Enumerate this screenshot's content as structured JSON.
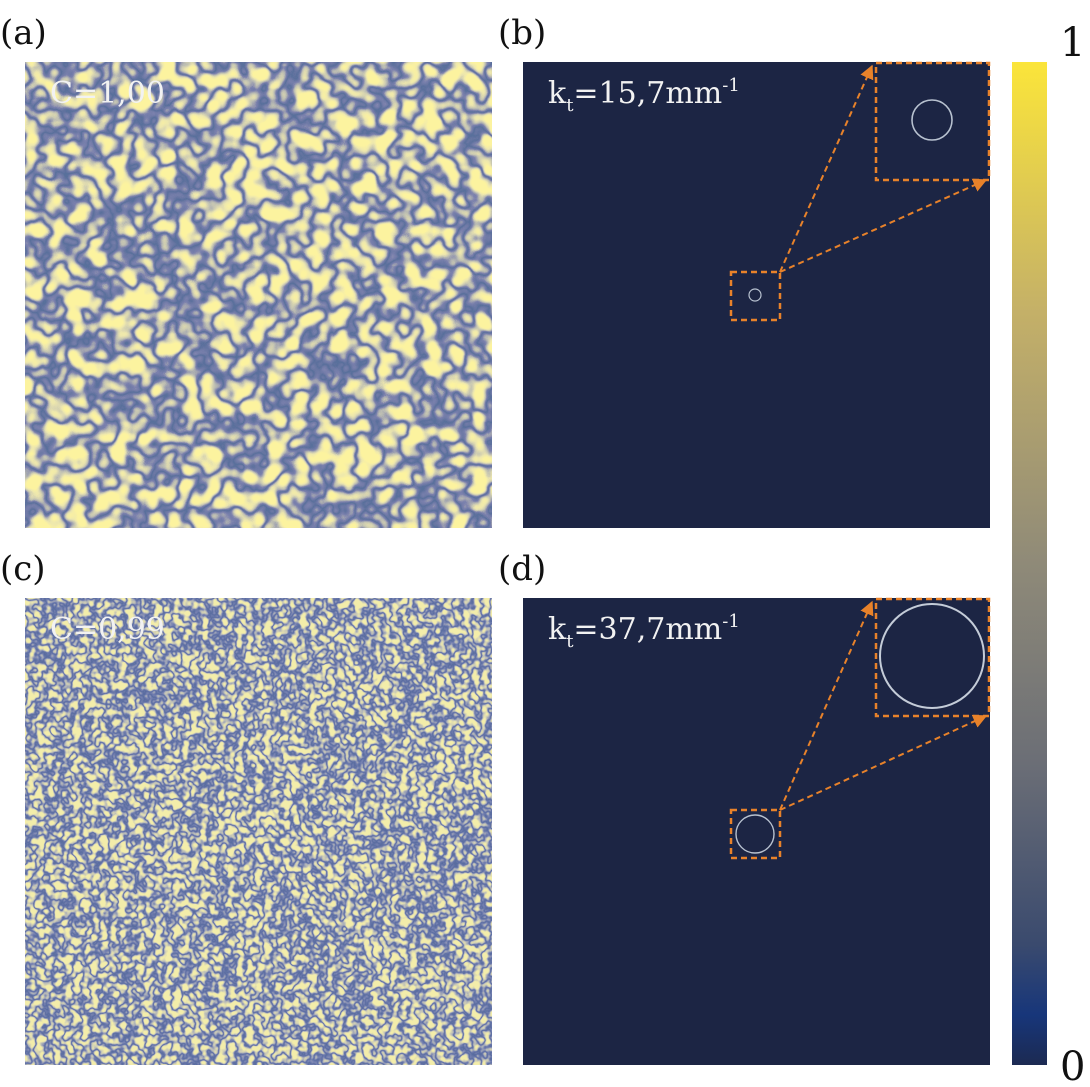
{
  "panels": [
    {
      "label": "(a)",
      "annotation": "C=1,00"
    },
    {
      "label": "(b)",
      "annotation": {
        "symbol": "k",
        "subscript": "t",
        "value": "=15,7mm",
        "superscript": "-1"
      }
    },
    {
      "label": "(c)",
      "annotation": "C=0,99"
    },
    {
      "label": "(d)",
      "annotation": {
        "symbol": "k",
        "subscript": "t",
        "value": "=37,7mm",
        "superscript": "-1"
      }
    }
  ],
  "colorbar": {
    "max_label": "1",
    "min_label": "0"
  }
}
